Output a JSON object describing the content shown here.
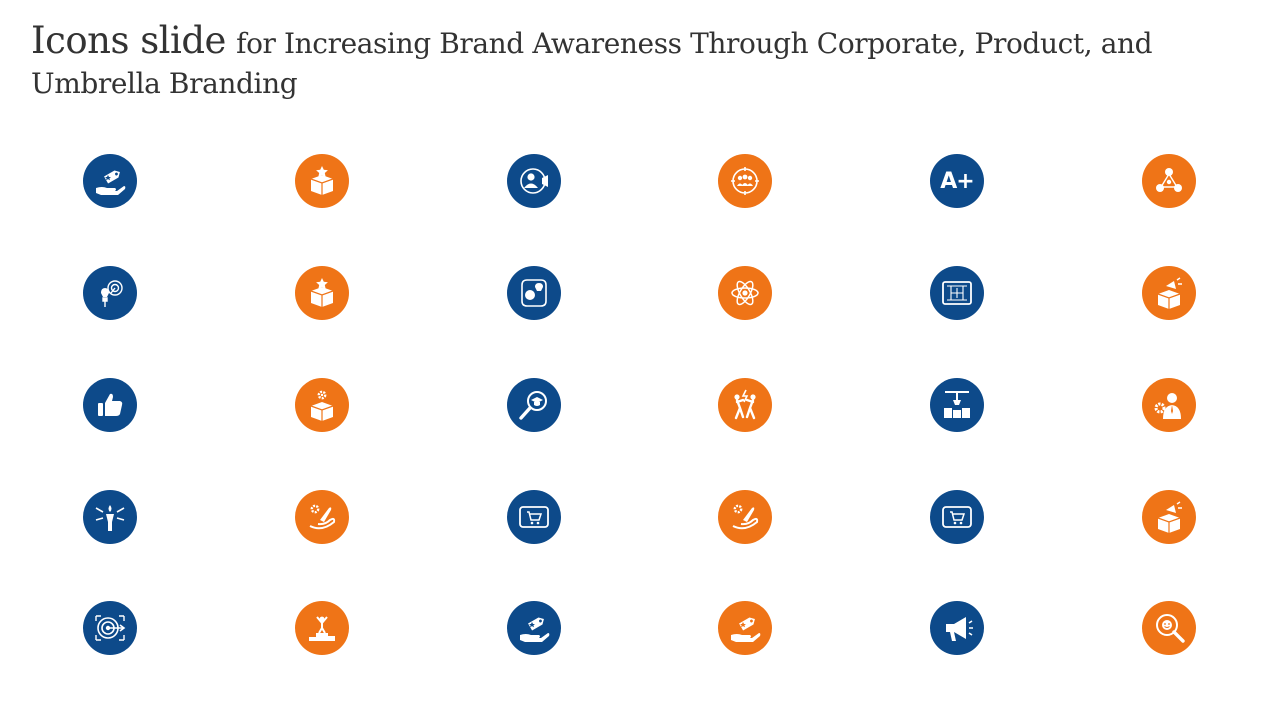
{
  "slide": {
    "title_strong": "Icons slide",
    "title_rest": "for Increasing Brand Awareness Through Corporate, Product, and Umbrella Branding"
  },
  "colors": {
    "blue": "#0d4a8a",
    "orange": "#ef7417",
    "glyph": "#ffffff"
  },
  "icons": [
    {
      "name": "hand-price-tag-icon",
      "color": "blue"
    },
    {
      "name": "box-star-icon",
      "color": "orange"
    },
    {
      "name": "user-megaphone-icon",
      "color": "blue"
    },
    {
      "name": "team-circle-icon",
      "color": "orange"
    },
    {
      "name": "a-plus-grade-icon",
      "color": "blue",
      "text": "A+"
    },
    {
      "name": "network-nodes-icon",
      "color": "orange"
    },
    {
      "name": "bulb-plug-target-icon",
      "color": "blue"
    },
    {
      "name": "box-star-icon",
      "color": "orange"
    },
    {
      "name": "head-bulb-idea-icon",
      "color": "blue"
    },
    {
      "name": "atom-icon",
      "color": "orange"
    },
    {
      "name": "blueprint-board-icon",
      "color": "blue"
    },
    {
      "name": "box-megaphone-icon",
      "color": "orange"
    },
    {
      "name": "thumbs-up-icon",
      "color": "blue"
    },
    {
      "name": "box-gear-icon",
      "color": "orange"
    },
    {
      "name": "magnifier-graduate-icon",
      "color": "blue"
    },
    {
      "name": "people-conflict-icon",
      "color": "orange"
    },
    {
      "name": "crane-production-icon",
      "color": "blue"
    },
    {
      "name": "businessman-gear-icon",
      "color": "orange"
    },
    {
      "name": "torch-arrows-icon",
      "color": "blue"
    },
    {
      "name": "rocket-gear-hand-icon",
      "color": "orange"
    },
    {
      "name": "tablet-cart-icon",
      "color": "blue"
    },
    {
      "name": "rocket-gear-hand-icon",
      "color": "orange"
    },
    {
      "name": "tablet-cart-icon",
      "color": "blue"
    },
    {
      "name": "box-megaphone-icon",
      "color": "orange"
    },
    {
      "name": "target-arrow-icon",
      "color": "blue"
    },
    {
      "name": "trophy-podium-icon",
      "color": "orange"
    },
    {
      "name": "hand-price-tag-icon",
      "color": "blue"
    },
    {
      "name": "hand-price-tag-icon",
      "color": "orange"
    },
    {
      "name": "megaphone-icon",
      "color": "blue"
    },
    {
      "name": "magnifier-face-icon",
      "color": "orange"
    }
  ]
}
